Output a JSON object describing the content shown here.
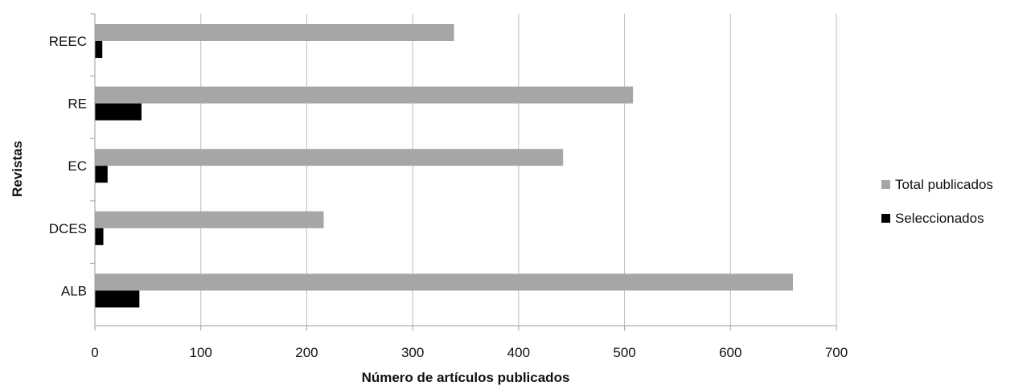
{
  "chart_data": {
    "type": "bar",
    "orientation": "horizontal",
    "categories": [
      "REEC",
      "RE",
      "EC",
      "DCES",
      "ALB"
    ],
    "series": [
      {
        "name": "Total publicados",
        "values": [
          339,
          508,
          442,
          216,
          659
        ],
        "color": "#a6a6a6"
      },
      {
        "name": "Seleccionados",
        "values": [
          7,
          44,
          12,
          8,
          42
        ],
        "color": "#000000"
      }
    ],
    "xlabel": "Número de artículos publicados",
    "ylabel": "Revistas",
    "xlim": [
      0,
      700
    ],
    "xticks": [
      "0",
      "100",
      "200",
      "300",
      "400",
      "500",
      "600",
      "700"
    ],
    "grid": "vertical",
    "legend_position": "right"
  }
}
